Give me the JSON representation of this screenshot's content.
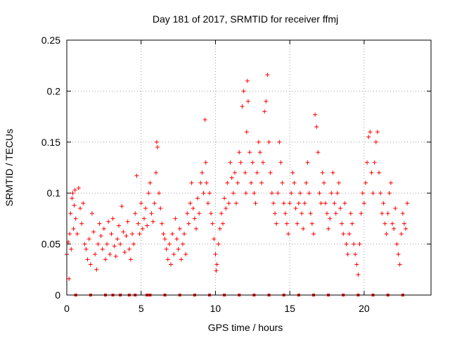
{
  "chart_data": {
    "type": "scatter",
    "title": "Day 181 of 2017, SRMTID for receiver ffmj",
    "xlabel": "GPS time / hours",
    "ylabel": "SRMTID / TECUs",
    "xlim": [
      0,
      24.5
    ],
    "ylim": [
      0,
      0.25
    ],
    "grid": true,
    "marker": "+",
    "color": "#ff0000",
    "x_ticks": [
      0,
      5,
      10,
      15,
      20
    ],
    "x_tick_labels": [
      "0",
      "5",
      "10",
      "15",
      "20"
    ],
    "y_ticks": [
      0,
      0.05,
      0.1,
      0.15,
      0.2,
      0.25
    ],
    "y_tick_labels": [
      "0",
      "0.05",
      "0.1",
      "0.15",
      "0.2",
      "0.25"
    ],
    "baseline_markers": {
      "y": 0,
      "x": [
        0.6,
        1.6,
        2.6,
        3.1,
        3.6,
        4.2,
        4.6,
        5.4,
        5.6,
        6.6,
        7.6,
        8.6,
        9.6,
        10.6,
        11.6,
        12.6,
        13.6,
        14.6,
        15.6,
        16.6,
        17.6,
        18.6,
        19.6,
        20.6,
        21.6,
        22.6
      ]
    },
    "series": [
      {
        "name": "SRMTID",
        "points": [
          [
            0.0,
            0.04
          ],
          [
            0.1,
            0.052
          ],
          [
            0.15,
            0.016
          ],
          [
            0.2,
            0.06
          ],
          [
            0.25,
            0.08
          ],
          [
            0.3,
            0.045
          ],
          [
            0.35,
            0.095
          ],
          [
            0.4,
            0.1
          ],
          [
            0.45,
            0.065
          ],
          [
            0.5,
            0.088
          ],
          [
            0.55,
            0.103
          ],
          [
            0.6,
            0.075
          ],
          [
            0.7,
            0.06
          ],
          [
            0.8,
            0.105
          ],
          [
            0.9,
            0.085
          ],
          [
            1.0,
            0.07
          ],
          [
            1.1,
            0.09
          ],
          [
            1.2,
            0.05
          ],
          [
            1.3,
            0.045
          ],
          [
            1.4,
            0.035
          ],
          [
            1.5,
            0.055
          ],
          [
            1.6,
            0.03
          ],
          [
            1.7,
            0.08
          ],
          [
            1.8,
            0.062
          ],
          [
            1.9,
            0.04
          ],
          [
            2.0,
            0.025
          ],
          [
            2.1,
            0.05
          ],
          [
            2.2,
            0.07
          ],
          [
            2.3,
            0.058
          ],
          [
            2.4,
            0.045
          ],
          [
            2.5,
            0.065
          ],
          [
            2.6,
            0.035
          ],
          [
            2.7,
            0.05
          ],
          [
            2.8,
            0.072
          ],
          [
            2.9,
            0.04
          ],
          [
            3.0,
            0.06
          ],
          [
            3.1,
            0.075
          ],
          [
            3.2,
            0.048
          ],
          [
            3.3,
            0.038
          ],
          [
            3.4,
            0.055
          ],
          [
            3.5,
            0.068
          ],
          [
            3.6,
            0.05
          ],
          [
            3.7,
            0.087
          ],
          [
            3.8,
            0.062
          ],
          [
            3.9,
            0.042
          ],
          [
            4.0,
            0.058
          ],
          [
            4.1,
            0.072
          ],
          [
            4.2,
            0.045
          ],
          [
            4.3,
            0.035
          ],
          [
            4.4,
            0.06
          ],
          [
            4.5,
            0.05
          ],
          [
            4.6,
            0.08
          ],
          [
            4.7,
            0.117
          ],
          [
            4.8,
            0.07
          ],
          [
            4.9,
            0.06
          ],
          [
            5.0,
            0.09
          ],
          [
            5.1,
            0.065
          ],
          [
            5.2,
            0.075
          ],
          [
            5.3,
            0.085
          ],
          [
            5.4,
            0.068
          ],
          [
            5.5,
            0.1
          ],
          [
            5.6,
            0.11
          ],
          [
            5.7,
            0.08
          ],
          [
            5.8,
            0.072
          ],
          [
            5.9,
            0.09
          ],
          [
            6.0,
            0.12
          ],
          [
            6.05,
            0.15
          ],
          [
            6.1,
            0.145
          ],
          [
            6.2,
            0.1
          ],
          [
            6.3,
            0.085
          ],
          [
            6.4,
            0.07
          ],
          [
            6.5,
            0.06
          ],
          [
            6.6,
            0.055
          ],
          [
            6.7,
            0.045
          ],
          [
            6.8,
            0.035
          ],
          [
            6.9,
            0.05
          ],
          [
            7.0,
            0.03
          ],
          [
            7.1,
            0.06
          ],
          [
            7.2,
            0.04
          ],
          [
            7.3,
            0.075
          ],
          [
            7.4,
            0.055
          ],
          [
            7.5,
            0.045
          ],
          [
            7.6,
            0.065
          ],
          [
            7.7,
            0.035
          ],
          [
            7.8,
            0.05
          ],
          [
            7.9,
            0.06
          ],
          [
            8.0,
            0.04
          ],
          [
            8.1,
            0.08
          ],
          [
            8.2,
            0.07
          ],
          [
            8.3,
            0.09
          ],
          [
            8.4,
            0.11
          ],
          [
            8.5,
            0.085
          ],
          [
            8.6,
            0.075
          ],
          [
            8.7,
            0.065
          ],
          [
            8.8,
            0.095
          ],
          [
            8.9,
            0.08
          ],
          [
            9.0,
            0.11
          ],
          [
            9.1,
            0.12
          ],
          [
            9.2,
            0.1
          ],
          [
            9.3,
            0.172
          ],
          [
            9.35,
            0.13
          ],
          [
            9.4,
            0.11
          ],
          [
            9.5,
            0.09
          ],
          [
            9.6,
            0.1
          ],
          [
            9.7,
            0.08
          ],
          [
            9.8,
            0.07
          ],
          [
            9.9,
            0.055
          ],
          [
            10.0,
            0.04
          ],
          [
            10.05,
            0.024
          ],
          [
            10.1,
            0.03
          ],
          [
            10.2,
            0.05
          ],
          [
            10.3,
            0.065
          ],
          [
            10.4,
            0.08
          ],
          [
            10.5,
            0.07
          ],
          [
            10.6,
            0.095
          ],
          [
            10.7,
            0.085
          ],
          [
            10.8,
            0.11
          ],
          [
            10.9,
            0.09
          ],
          [
            11.0,
            0.13
          ],
          [
            11.1,
            0.115
          ],
          [
            11.2,
            0.1
          ],
          [
            11.3,
            0.12
          ],
          [
            11.4,
            0.09
          ],
          [
            11.5,
            0.11
          ],
          [
            11.6,
            0.14
          ],
          [
            11.7,
            0.13
          ],
          [
            11.8,
            0.185
          ],
          [
            11.9,
            0.2
          ],
          [
            12.0,
            0.12
          ],
          [
            12.05,
            0.1
          ],
          [
            12.1,
            0.16
          ],
          [
            12.15,
            0.21
          ],
          [
            12.2,
            0.19
          ],
          [
            12.3,
            0.14
          ],
          [
            12.4,
            0.11
          ],
          [
            12.5,
            0.13
          ],
          [
            12.6,
            0.1
          ],
          [
            12.7,
            0.09
          ],
          [
            12.8,
            0.12
          ],
          [
            12.9,
            0.15
          ],
          [
            13.0,
            0.14
          ],
          [
            13.1,
            0.11
          ],
          [
            13.2,
            0.13
          ],
          [
            13.3,
            0.18
          ],
          [
            13.4,
            0.19
          ],
          [
            13.5,
            0.216
          ],
          [
            13.6,
            0.15
          ],
          [
            13.7,
            0.12
          ],
          [
            13.8,
            0.1
          ],
          [
            13.9,
            0.09
          ],
          [
            14.0,
            0.08
          ],
          [
            14.1,
            0.07
          ],
          [
            14.2,
            0.1
          ],
          [
            14.3,
            0.15
          ],
          [
            14.4,
            0.13
          ],
          [
            14.5,
            0.11
          ],
          [
            14.6,
            0.09
          ],
          [
            14.7,
            0.08
          ],
          [
            14.8,
            0.07
          ],
          [
            14.9,
            0.06
          ],
          [
            15.0,
            0.09
          ],
          [
            15.1,
            0.1
          ],
          [
            15.2,
            0.12
          ],
          [
            15.3,
            0.11
          ],
          [
            15.4,
            0.085
          ],
          [
            15.5,
            0.07
          ],
          [
            15.6,
            0.09
          ],
          [
            15.7,
            0.1
          ],
          [
            15.8,
            0.08
          ],
          [
            15.9,
            0.065
          ],
          [
            16.0,
            0.09
          ],
          [
            16.1,
            0.11
          ],
          [
            16.2,
            0.13
          ],
          [
            16.3,
            0.1
          ],
          [
            16.4,
            0.08
          ],
          [
            16.5,
            0.07
          ],
          [
            16.6,
            0.06
          ],
          [
            16.7,
            0.177
          ],
          [
            16.8,
            0.165
          ],
          [
            16.9,
            0.14
          ],
          [
            17.0,
            0.1
          ],
          [
            17.1,
            0.09
          ],
          [
            17.2,
            0.12
          ],
          [
            17.3,
            0.11
          ],
          [
            17.4,
            0.09
          ],
          [
            17.5,
            0.08
          ],
          [
            17.6,
            0.065
          ],
          [
            17.7,
            0.075
          ],
          [
            17.8,
            0.1
          ],
          [
            17.9,
            0.12
          ],
          [
            18.0,
            0.09
          ],
          [
            18.1,
            0.08
          ],
          [
            18.2,
            0.1
          ],
          [
            18.3,
            0.11
          ],
          [
            18.4,
            0.085
          ],
          [
            18.5,
            0.07
          ],
          [
            18.6,
            0.06
          ],
          [
            18.7,
            0.09
          ],
          [
            18.8,
            0.05
          ],
          [
            18.9,
            0.04
          ],
          [
            19.0,
            0.06
          ],
          [
            19.1,
            0.08
          ],
          [
            19.2,
            0.07
          ],
          [
            19.3,
            0.05
          ],
          [
            19.4,
            0.04
          ],
          [
            19.5,
            0.03
          ],
          [
            19.6,
            0.02
          ],
          [
            19.7,
            0.05
          ],
          [
            19.8,
            0.08
          ],
          [
            19.9,
            0.1
          ],
          [
            20.0,
            0.09
          ],
          [
            20.1,
            0.11
          ],
          [
            20.2,
            0.13
          ],
          [
            20.3,
            0.155
          ],
          [
            20.4,
            0.16
          ],
          [
            20.5,
            0.12
          ],
          [
            20.6,
            0.1
          ],
          [
            20.7,
            0.13
          ],
          [
            20.8,
            0.15
          ],
          [
            20.9,
            0.16
          ],
          [
            21.0,
            0.12
          ],
          [
            21.1,
            0.1
          ],
          [
            21.2,
            0.08
          ],
          [
            21.3,
            0.09
          ],
          [
            21.4,
            0.07
          ],
          [
            21.5,
            0.06
          ],
          [
            21.6,
            0.08
          ],
          [
            21.7,
            0.1
          ],
          [
            21.8,
            0.11
          ],
          [
            21.9,
            0.07
          ],
          [
            22.0,
            0.065
          ],
          [
            22.1,
            0.085
          ],
          [
            22.2,
            0.05
          ],
          [
            22.3,
            0.04
          ],
          [
            22.4,
            0.03
          ],
          [
            22.5,
            0.06
          ],
          [
            22.6,
            0.08
          ],
          [
            22.7,
            0.07
          ],
          [
            22.8,
            0.065
          ],
          [
            22.9,
            0.09
          ]
        ]
      }
    ]
  }
}
